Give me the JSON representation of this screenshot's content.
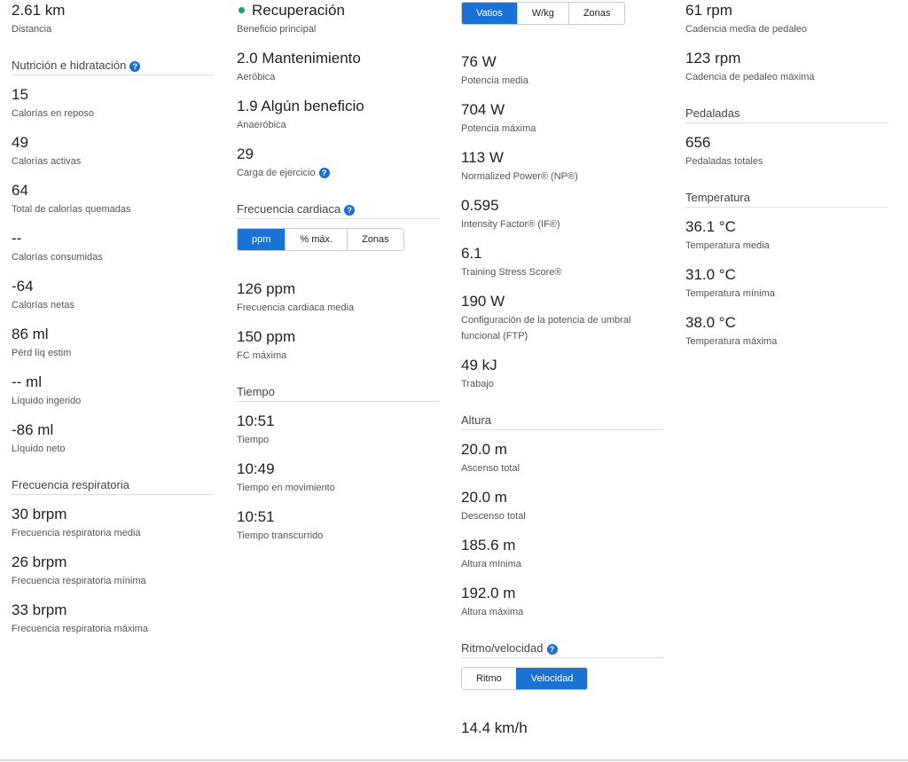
{
  "accent_color": "#1a73d4",
  "status_dot_color": "#1aa06d",
  "help_icon": "question-circle-icon",
  "columns": [
    {
      "blocks": [
        {
          "type": "stat",
          "value": "2.61 km",
          "label": "Distancia"
        },
        {
          "type": "header",
          "title": "Nutrición e hidratación",
          "help": true
        },
        {
          "type": "stat",
          "value": "15",
          "label": "Calorías en reposo"
        },
        {
          "type": "stat",
          "value": "49",
          "label": "Calorías activas"
        },
        {
          "type": "stat",
          "value": "64",
          "label": "Total de calorías quemadas"
        },
        {
          "type": "stat",
          "value": "--",
          "label": "Calorías consumidas"
        },
        {
          "type": "stat",
          "value": "-64",
          "label": "Calorías netas"
        },
        {
          "type": "stat",
          "value": "86 ml",
          "label": "Pérd líq estim"
        },
        {
          "type": "stat",
          "value": "-- ml",
          "label": "Líquido ingerido"
        },
        {
          "type": "stat",
          "value": "-86 ml",
          "label": "Líquido neto"
        },
        {
          "type": "header",
          "title": "Frecuencia respiratoria"
        },
        {
          "type": "stat",
          "value": "30 brpm",
          "label": "Frecuencia respiratoria media"
        },
        {
          "type": "stat",
          "value": "26 brpm",
          "label": "Frecuencia respiratoria mínima"
        },
        {
          "type": "stat",
          "value": "33 brpm",
          "label": "Frecuencia respiratoria máxima"
        }
      ]
    },
    {
      "blocks": [
        {
          "type": "stat",
          "value": "Recuperación",
          "label": "Beneficio principal",
          "dot": true
        },
        {
          "type": "stat",
          "value": "2.0 Mantenimiento",
          "label": "Aeróbica"
        },
        {
          "type": "stat",
          "value": "1.9 Algún beneficio",
          "label": "Anaeróbica"
        },
        {
          "type": "stat",
          "value": "29",
          "label": "Carga de ejercicio",
          "help": true
        },
        {
          "type": "header",
          "title": "Frecuencia cardiaca",
          "help": true
        },
        {
          "type": "toggle",
          "options": [
            "ppm",
            "% máx.",
            "Zonas"
          ],
          "active": "ppm"
        },
        {
          "type": "stat",
          "value": "126 ppm",
          "label": "Frecuencia cardiaca media"
        },
        {
          "type": "stat",
          "value": "150 ppm",
          "label": "FC máxima"
        },
        {
          "type": "header",
          "title": "Tiempo"
        },
        {
          "type": "stat",
          "value": "10:51",
          "label": "Tiempo"
        },
        {
          "type": "stat",
          "value": "10:49",
          "label": "Tiempo en movimiento"
        },
        {
          "type": "stat",
          "value": "10:51",
          "label": "Tiempo transcurrido"
        }
      ]
    },
    {
      "blocks": [
        {
          "type": "toggle",
          "options": [
            "Vatios",
            "W/kg",
            "Zonas"
          ],
          "active": "Vatios",
          "first": true
        },
        {
          "type": "stat",
          "value": "76 W",
          "label": "Potencia media"
        },
        {
          "type": "stat",
          "value": "704 W",
          "label": "Potencia máxima"
        },
        {
          "type": "stat",
          "value": "113 W",
          "label": "Normalized Power® (NP®)"
        },
        {
          "type": "stat",
          "value": "0.595",
          "label": "Intensity Factor® (IF®)"
        },
        {
          "type": "stat",
          "value": "6.1",
          "label": "Training Stress Score®"
        },
        {
          "type": "stat",
          "value": "190 W",
          "label": "Configuración de la potencia de umbral funcional (FTP)"
        },
        {
          "type": "stat",
          "value": "49 kJ",
          "label": "Trabajo"
        },
        {
          "type": "header",
          "title": "Altura"
        },
        {
          "type": "stat",
          "value": "20.0 m",
          "label": "Ascenso total"
        },
        {
          "type": "stat",
          "value": "20.0 m",
          "label": "Descenso total"
        },
        {
          "type": "stat",
          "value": "185.6 m",
          "label": "Altura mínima"
        },
        {
          "type": "stat",
          "value": "192.0 m",
          "label": "Altura máxima"
        },
        {
          "type": "header",
          "title": "Ritmo/velocidad",
          "help": true
        },
        {
          "type": "toggle",
          "options": [
            "Ritmo",
            "Velocidad"
          ],
          "active": "Velocidad"
        },
        {
          "type": "stat",
          "value": "14.4 km/h",
          "label": ""
        }
      ]
    },
    {
      "blocks": [
        {
          "type": "stat",
          "value": "61 rpm",
          "label": "Cadencia media de pedaleo"
        },
        {
          "type": "stat",
          "value": "123 rpm",
          "label": "Cadencia de pedaleo máxima"
        },
        {
          "type": "header",
          "title": "Pedaladas"
        },
        {
          "type": "stat",
          "value": "656",
          "label": "Pedaladas totales"
        },
        {
          "type": "header",
          "title": "Temperatura"
        },
        {
          "type": "stat",
          "value": "36.1 °C",
          "label": "Temperatura media"
        },
        {
          "type": "stat",
          "value": "31.0 °C",
          "label": "Temperatura mínima"
        },
        {
          "type": "stat",
          "value": "38.0 °C",
          "label": "Temperatura máxima"
        }
      ]
    }
  ]
}
